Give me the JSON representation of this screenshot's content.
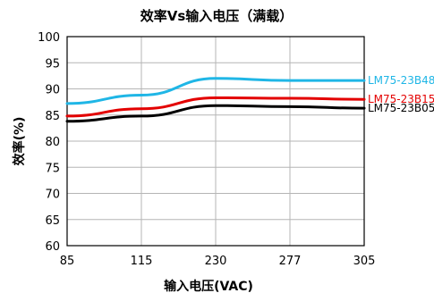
{
  "chart_data": {
    "type": "line",
    "title": "效率Vs输入电压（满载）",
    "xlabel": "输入电压(VAC)",
    "ylabel": "效率(%)",
    "x_ticks": [
      "85",
      "115",
      "230",
      "277",
      "305"
    ],
    "y_ticks": [
      "60",
      "65",
      "70",
      "75",
      "80",
      "85",
      "90",
      "95",
      "100"
    ],
    "ylim": [
      60,
      100
    ],
    "grid": true,
    "legend_placement": "right",
    "series": [
      {
        "name": "LM75-23B48",
        "color": "#1fb6e6",
        "points": [
          [
            "85",
            87.2
          ],
          [
            "115",
            88.8
          ],
          [
            "230",
            92.0
          ],
          [
            "277",
            91.6
          ],
          [
            "305",
            91.6
          ]
        ]
      },
      {
        "name": "LM75-23B15",
        "color": "#e30000",
        "points": [
          [
            "85",
            84.8
          ],
          [
            "115",
            86.2
          ],
          [
            "230",
            88.3
          ],
          [
            "277",
            88.2
          ],
          [
            "305",
            88.0
          ]
        ]
      },
      {
        "name": "LM75-23B05",
        "color": "#000000",
        "points": [
          [
            "85",
            83.8
          ],
          [
            "115",
            84.8
          ],
          [
            "230",
            86.8
          ],
          [
            "277",
            86.6
          ],
          [
            "305",
            86.3
          ]
        ]
      }
    ]
  }
}
